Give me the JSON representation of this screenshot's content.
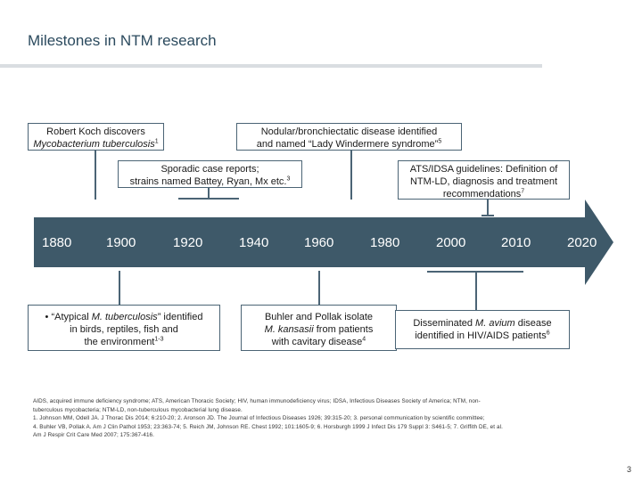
{
  "title": "Milestones in NTM research",
  "years": [
    "1880",
    "1900",
    "1920",
    "1940",
    "1960",
    "1980",
    "2000",
    "2010",
    "2020"
  ],
  "top_boxes": {
    "koch": {
      "line1": "Robert Koch discovers",
      "line2": "Mycobacterium tuberculosis",
      "sup": "1"
    },
    "nodular": {
      "line1": "Nodular/bronchiectatic disease identified",
      "line2": "and named “Lady Windermere syndrome”",
      "sup": "5"
    },
    "sporadic": {
      "line1": "Sporadic case reports;",
      "line2": "strains named Battey, Ryan, Mx etc.",
      "sup": "3"
    },
    "ats": {
      "line1": "ATS/IDSA guidelines: Definition of",
      "line2": "NTM-LD, diagnosis and treatment",
      "line3": "recommendations",
      "sup": "7"
    }
  },
  "bottom_boxes": {
    "atypical": {
      "pre": "“Atypical ",
      "ital": "M. tuberculosis",
      "post": "” identified",
      "line2": "in birds, reptiles, fish and",
      "line3": "the environment",
      "sup": "1-3"
    },
    "buhler": {
      "line1": "Buhler and Pollak isolate",
      "ital": "M. kansasii",
      "line2post": " from patients",
      "line3": "with cavitary disease",
      "sup": "4"
    },
    "mac": {
      "pre": "Disseminated ",
      "ital": "M. avium",
      "post": " disease",
      "line2": "identified in HIV/AIDS patients",
      "sup": "6"
    }
  },
  "footnotes": [
    "AIDS, acquired immune deficiency syndrome; ATS, American Thoracic Society; HIV, human immunodeficiency virus; IDSA, Infectious Diseases Society of America; NTM, non-",
    "tuberculous mycobacteria; NTM-LD, non-tuberculous mycobacterial lung disease.",
    "1. Johnson MM, Odell JA. J Thorac Dis 2014; 6:210-20; 2. Aronson JD. The Journal of Infectious Diseases 1926; 39:315-20; 3. personal communication by scientific committee;",
    "4. Buhler VB, Pollak A. Am J Clin Pathol 1953; 23:363-74; 5. Reich JM, Johnson RE. Chest 1992; 101:1605-9; 6. Horsburgh 1999 J Infect Dis 179 Suppl 3: S461-5; 7. Griffith DE, et al.",
    "Am J Respir Crit Care Med 2007; 175:367-416."
  ],
  "page_number": "3",
  "colors": {
    "timeline": "#3e5969",
    "border": "#4b6475"
  }
}
